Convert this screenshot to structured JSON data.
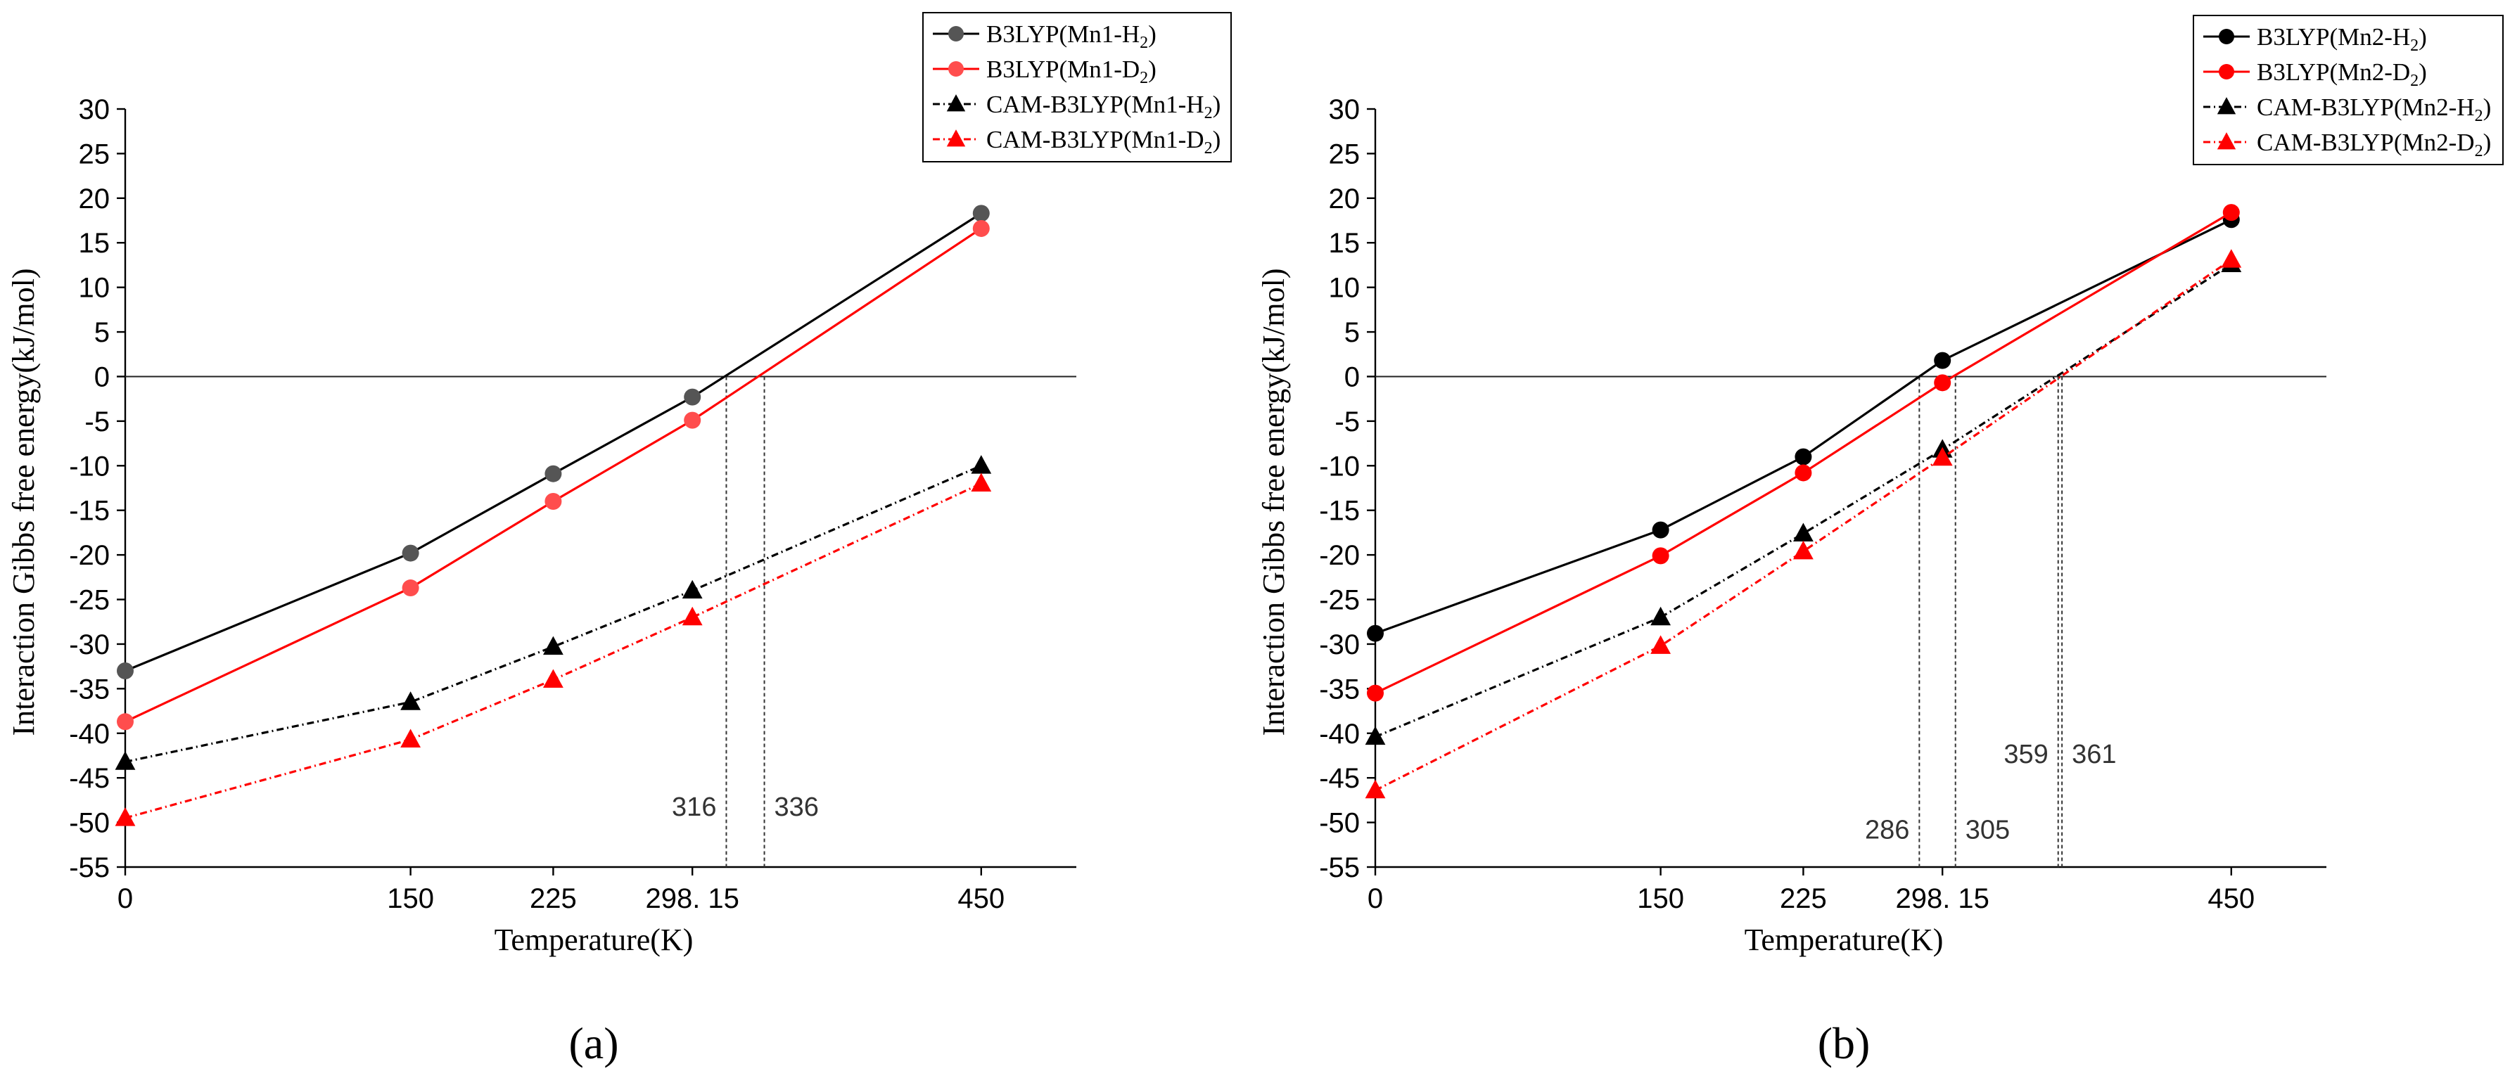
{
  "chart_data": [
    {
      "type": "line",
      "panel_label": "(a)",
      "xlabel": "Temperature(K)",
      "ylabel": "Interaction Gibbs free energy(kJ/mol)",
      "xticks": [
        0,
        150,
        225,
        298.15,
        450
      ],
      "xtick_labels": [
        "0",
        "150",
        "225",
        "298. 15",
        "450"
      ],
      "xlim": [
        0,
        500
      ],
      "ylim": [
        -55,
        30
      ],
      "yticks": [
        30,
        25,
        20,
        15,
        10,
        5,
        0,
        -5,
        -10,
        -15,
        -20,
        -25,
        -30,
        -35,
        -40,
        -45,
        -50,
        -55
      ],
      "legend_position": "top-right",
      "series": [
        {
          "name": "B3LYP(Mn1-H",
          "sub": "2",
          "tail": ")",
          "color": "#000000",
          "marker_color": "#555555",
          "marker": "circle",
          "dash": "",
          "x": [
            0,
            150,
            225,
            298.15,
            450
          ],
          "y": [
            -33,
            -19.8,
            -10.9,
            -2.3,
            18.3
          ]
        },
        {
          "name": "B3LYP(Mn1-D",
          "sub": "2",
          "tail": ")",
          "color": "#ff0000",
          "marker_color": "#ff4d4d",
          "marker": "circle",
          "dash": "",
          "x": [
            0,
            150,
            225,
            298.15,
            450
          ],
          "y": [
            -38.7,
            -23.7,
            -14,
            -4.9,
            16.6
          ]
        },
        {
          "name": "CAM-B3LYP(Mn1-H",
          "sub": "2",
          "tail": ")",
          "color": "#000000",
          "marker_color": "#000000",
          "marker": "triangle",
          "dash": "10 5 2 5",
          "x": [
            0,
            150,
            225,
            298.15,
            450
          ],
          "y": [
            -43.2,
            -36.5,
            -30.3,
            -24,
            -10
          ]
        },
        {
          "name": "CAM-B3LYP(Mn1-D",
          "sub": "2",
          "tail": ")",
          "color": "#ff0000",
          "marker_color": "#ff0000",
          "marker": "triangle",
          "dash": "10 5 2 5",
          "x": [
            0,
            150,
            225,
            298.15,
            450
          ],
          "y": [
            -49.5,
            -40.7,
            -34,
            -27,
            -12
          ]
        }
      ],
      "crossing_lines": [
        316,
        336
      ],
      "annotations": [
        {
          "text": "316",
          "x": 316,
          "y": -48.2,
          "anchor": "end"
        },
        {
          "text": "336",
          "x": 336,
          "y": -48.2,
          "anchor": "start"
        }
      ]
    },
    {
      "type": "line",
      "panel_label": "(b)",
      "xlabel": "Temperature(K)",
      "ylabel": "Interaction Gibbs free energy(kJ/mol)",
      "xticks": [
        0,
        150,
        225,
        298.15,
        450
      ],
      "xtick_labels": [
        "0",
        "150",
        "225",
        "298. 15",
        "450"
      ],
      "xlim": [
        0,
        500
      ],
      "ylim": [
        -55,
        30
      ],
      "yticks": [
        30,
        25,
        20,
        15,
        10,
        5,
        0,
        -5,
        -10,
        -15,
        -20,
        -25,
        -30,
        -35,
        -40,
        -45,
        -50,
        -55
      ],
      "legend_position": "top-right",
      "series": [
        {
          "name": "B3LYP(Mn2-H",
          "sub": "2",
          "tail": ")",
          "color": "#000000",
          "marker_color": "#000000",
          "marker": "circle",
          "dash": "",
          "x": [
            0,
            150,
            225,
            298.15,
            450
          ],
          "y": [
            -28.8,
            -17.2,
            -9,
            1.8,
            17.6
          ]
        },
        {
          "name": "B3LYP(Mn2-D",
          "sub": "2",
          "tail": ")",
          "color": "#ff0000",
          "marker_color": "#ff0000",
          "marker": "circle",
          "dash": "",
          "x": [
            0,
            150,
            225,
            298.15,
            450
          ],
          "y": [
            -35.5,
            -20.1,
            -10.8,
            -0.7,
            18.4
          ]
        },
        {
          "name": "CAM-B3LYP(Mn2-H",
          "sub": "2",
          "tail": ")",
          "color": "#000000",
          "marker_color": "#000000",
          "marker": "triangle",
          "dash": "10 5 2 5",
          "x": [
            0,
            150,
            225,
            298.15,
            450
          ],
          "y": [
            -40.4,
            -27,
            -17.6,
            -8.2,
            12.6
          ]
        },
        {
          "name": "CAM-B3LYP(Mn2-D",
          "sub": "2",
          "tail": ")",
          "color": "#ff0000",
          "marker_color": "#ff0000",
          "marker": "triangle",
          "dash": "10 5 2 5",
          "x": [
            0,
            150,
            225,
            298.15,
            450
          ],
          "y": [
            -46.4,
            -30.2,
            -19.6,
            -9.1,
            13.1
          ]
        }
      ],
      "crossing_lines": [
        286,
        305,
        359,
        361
      ],
      "annotations": [
        {
          "text": "286",
          "x": 286,
          "y": -50.8,
          "anchor": "end"
        },
        {
          "text": "305",
          "x": 305,
          "y": -50.8,
          "anchor": "start"
        },
        {
          "text": "359",
          "x": 359,
          "y": -42.3,
          "anchor": "end"
        },
        {
          "text": "361",
          "x": 361,
          "y": -42.3,
          "anchor": "start"
        }
      ]
    }
  ]
}
